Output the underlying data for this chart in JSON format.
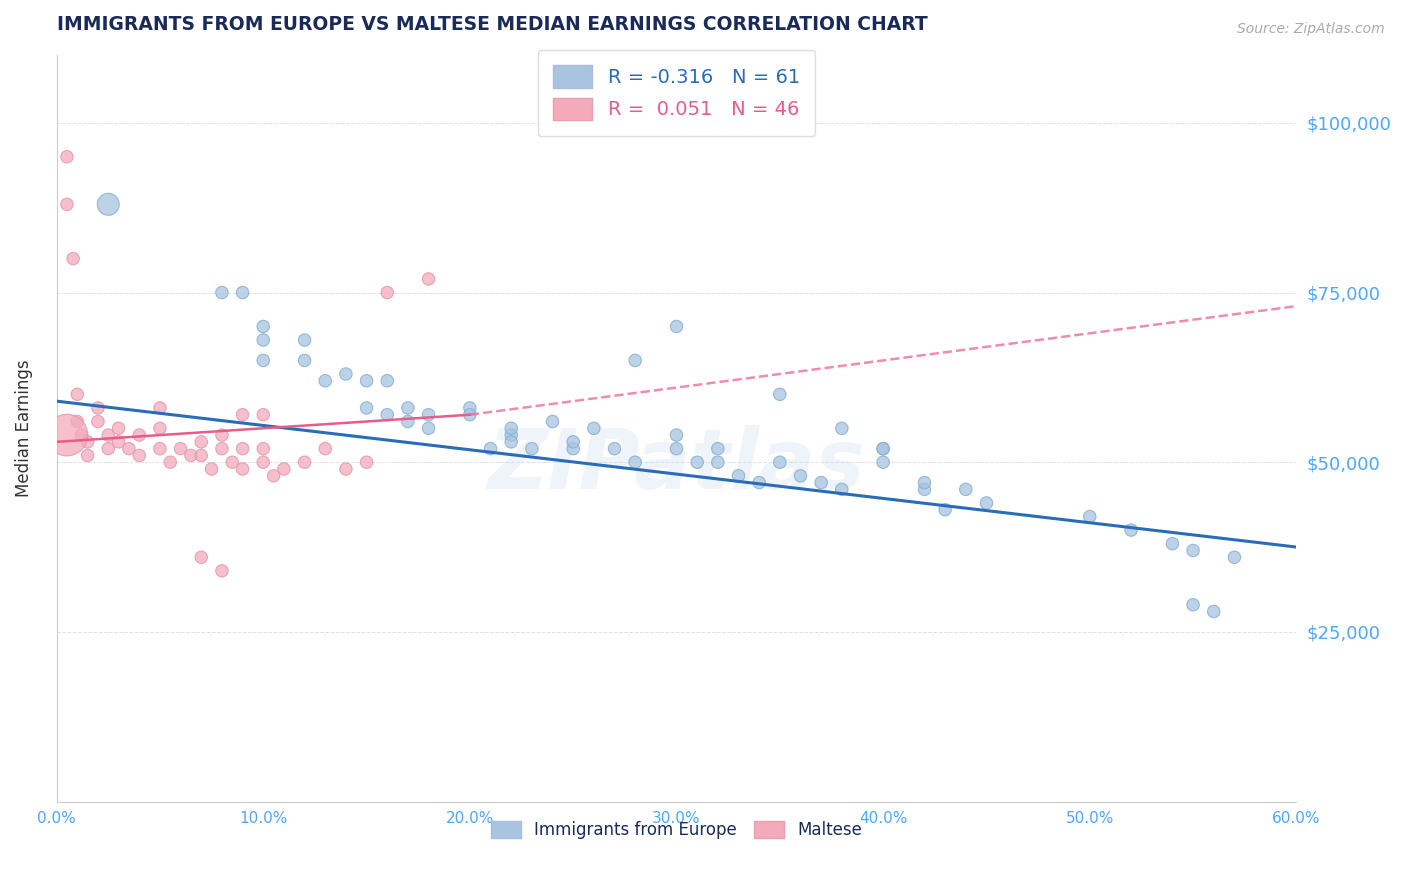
{
  "title": "IMMIGRANTS FROM EUROPE VS MALTESE MEDIAN EARNINGS CORRELATION CHART",
  "source": "Source: ZipAtlas.com",
  "ylabel": "Median Earnings",
  "watermark": "ZIPatlas",
  "xlim": [
    0.0,
    0.6
  ],
  "ylim": [
    0,
    110000
  ],
  "xtick_labels": [
    "0.0%",
    "",
    "",
    "",
    "",
    "",
    "",
    "",
    "",
    "",
    "10.0%",
    "",
    "",
    "",
    "",
    "",
    "",
    "",
    "",
    "",
    "20.0%",
    "",
    "",
    "",
    "",
    "",
    "",
    "",
    "",
    "",
    "30.0%",
    "",
    "",
    "",
    "",
    "",
    "",
    "",
    "",
    "",
    "40.0%",
    "",
    "",
    "",
    "",
    "",
    "",
    "",
    "",
    "",
    "50.0%",
    "",
    "",
    "",
    "",
    "",
    "",
    "",
    "",
    "",
    "60.0%"
  ],
  "xtick_values": [
    0.0,
    0.01,
    0.02,
    0.03,
    0.04,
    0.05,
    0.06,
    0.07,
    0.08,
    0.09,
    0.1,
    0.11,
    0.12,
    0.13,
    0.14,
    0.15,
    0.16,
    0.17,
    0.18,
    0.19,
    0.2,
    0.21,
    0.22,
    0.23,
    0.24,
    0.25,
    0.26,
    0.27,
    0.28,
    0.29,
    0.3,
    0.31,
    0.32,
    0.33,
    0.34,
    0.35,
    0.36,
    0.37,
    0.38,
    0.39,
    0.4,
    0.41,
    0.42,
    0.43,
    0.44,
    0.45,
    0.46,
    0.47,
    0.48,
    0.49,
    0.5,
    0.51,
    0.52,
    0.53,
    0.54,
    0.55,
    0.56,
    0.57,
    0.58,
    0.59,
    0.6
  ],
  "major_xtick_values": [
    0.0,
    0.1,
    0.2,
    0.3,
    0.4,
    0.5,
    0.6
  ],
  "major_xtick_labels": [
    "0.0%",
    "10.0%",
    "20.0%",
    "30.0%",
    "40.0%",
    "50.0%",
    "60.0%"
  ],
  "ytick_values": [
    0,
    25000,
    50000,
    75000,
    100000
  ],
  "ytick_labels_right": [
    "",
    "$25,000",
    "$50,000",
    "$75,000",
    "$100,000"
  ],
  "legend_europe_r": "-0.316",
  "legend_europe_n": "61",
  "legend_maltese_r": "0.051",
  "legend_maltese_n": "46",
  "europe_color": "#A8C4E0",
  "maltese_color": "#F4AABB",
  "europe_line_color": "#2B6CB8",
  "maltese_line_color": "#E85C8A",
  "right_ytick_color": "#4DA6FF",
  "title_color": "#1A2B5A",
  "source_color": "#AAAAAA",
  "legend_text_color_europe": "#2B6CB8",
  "legend_text_color_maltese": "#E85C8A",
  "background_color": "#FFFFFF",
  "grid_color": "#CCCCCC",
  "europe_scatter": {
    "x": [
      0.025,
      0.08,
      0.09,
      0.1,
      0.1,
      0.1,
      0.12,
      0.12,
      0.13,
      0.14,
      0.15,
      0.15,
      0.16,
      0.16,
      0.17,
      0.17,
      0.18,
      0.18,
      0.2,
      0.2,
      0.21,
      0.22,
      0.22,
      0.22,
      0.23,
      0.24,
      0.25,
      0.25,
      0.26,
      0.27,
      0.28,
      0.3,
      0.3,
      0.31,
      0.32,
      0.32,
      0.33,
      0.34,
      0.35,
      0.36,
      0.37,
      0.38,
      0.4,
      0.4,
      0.42,
      0.42,
      0.43,
      0.44,
      0.45,
      0.5,
      0.52,
      0.54,
      0.55,
      0.56,
      0.28,
      0.3,
      0.35,
      0.38,
      0.4,
      0.55,
      0.57
    ],
    "y": [
      88000,
      75000,
      75000,
      70000,
      68000,
      65000,
      68000,
      65000,
      62000,
      63000,
      62000,
      58000,
      62000,
      57000,
      58000,
      56000,
      57000,
      55000,
      58000,
      57000,
      52000,
      54000,
      55000,
      53000,
      52000,
      56000,
      52000,
      53000,
      55000,
      52000,
      50000,
      54000,
      52000,
      50000,
      50000,
      52000,
      48000,
      47000,
      50000,
      48000,
      47000,
      46000,
      50000,
      52000,
      46000,
      47000,
      43000,
      46000,
      44000,
      42000,
      40000,
      38000,
      37000,
      28000,
      65000,
      70000,
      60000,
      55000,
      52000,
      29000,
      36000
    ],
    "sizes": [
      250,
      80,
      80,
      80,
      80,
      80,
      80,
      80,
      80,
      80,
      80,
      80,
      80,
      80,
      80,
      80,
      80,
      80,
      80,
      80,
      80,
      80,
      80,
      80,
      80,
      80,
      80,
      80,
      80,
      80,
      80,
      80,
      80,
      80,
      80,
      80,
      80,
      80,
      80,
      80,
      80,
      80,
      80,
      80,
      80,
      80,
      80,
      80,
      80,
      80,
      80,
      80,
      80,
      80,
      80,
      80,
      80,
      80,
      80,
      80,
      80
    ]
  },
  "maltese_scatter": {
    "x": [
      0.005,
      0.005,
      0.008,
      0.01,
      0.01,
      0.012,
      0.015,
      0.015,
      0.02,
      0.02,
      0.025,
      0.025,
      0.03,
      0.03,
      0.035,
      0.04,
      0.04,
      0.05,
      0.05,
      0.055,
      0.06,
      0.065,
      0.07,
      0.07,
      0.075,
      0.08,
      0.08,
      0.085,
      0.09,
      0.09,
      0.1,
      0.1,
      0.105,
      0.11,
      0.12,
      0.13,
      0.14,
      0.15,
      0.16,
      0.18,
      0.07,
      0.08,
      0.09,
      0.1,
      0.05,
      0.005
    ],
    "y": [
      95000,
      88000,
      80000,
      60000,
      56000,
      54000,
      53000,
      51000,
      58000,
      56000,
      54000,
      52000,
      55000,
      53000,
      52000,
      54000,
      51000,
      55000,
      52000,
      50000,
      52000,
      51000,
      53000,
      51000,
      49000,
      54000,
      52000,
      50000,
      52000,
      49000,
      52000,
      50000,
      48000,
      49000,
      50000,
      52000,
      49000,
      50000,
      75000,
      77000,
      36000,
      34000,
      57000,
      57000,
      58000,
      54000
    ],
    "sizes": [
      80,
      80,
      80,
      80,
      80,
      80,
      80,
      80,
      80,
      80,
      80,
      80,
      80,
      80,
      80,
      80,
      80,
      80,
      80,
      80,
      80,
      80,
      80,
      80,
      80,
      80,
      80,
      80,
      80,
      80,
      80,
      80,
      80,
      80,
      80,
      80,
      80,
      80,
      80,
      80,
      80,
      80,
      80,
      80,
      80,
      900
    ]
  },
  "europe_trendline": {
    "x": [
      0.0,
      0.6
    ],
    "y": [
      59000,
      37500
    ]
  },
  "maltese_trendline": {
    "x": [
      0.0,
      0.2
    ],
    "y": [
      53000,
      57000
    ]
  },
  "maltese_trendline_dashed": {
    "x": [
      0.2,
      0.6
    ],
    "y": [
      57000,
      73000
    ]
  }
}
